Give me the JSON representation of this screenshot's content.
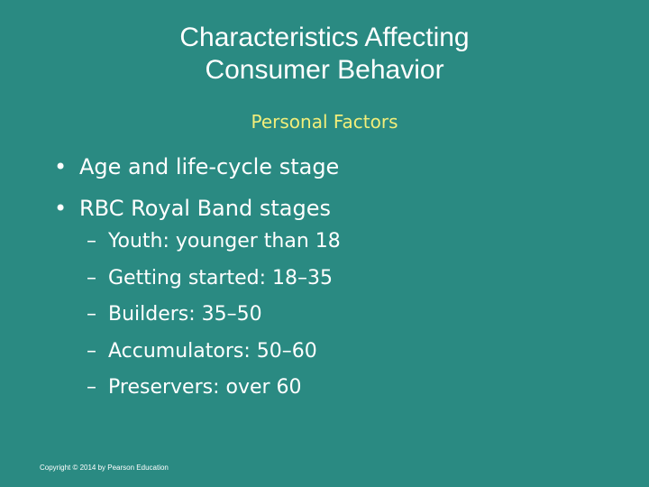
{
  "slide": {
    "title_line1": "Characteristics Affecting",
    "title_line2": "Consumer Behavior",
    "subtitle": "Personal Factors",
    "bullets": [
      "Age and life-cycle stage",
      "RBC Royal Band stages"
    ],
    "sub_bullets": [
      "Youth: younger than 18",
      "Getting started: 18–35",
      "Builders: 35–50",
      "Accumulators: 50–60",
      "Preservers: over 60"
    ],
    "bullet_glyph": "•",
    "dash_glyph": "–",
    "copyright": "Copyright © 2014 by Pearson Education"
  },
  "colors": {
    "background": "#2a8a82",
    "title": "#ffffff",
    "subtitle": "#f2ee7a",
    "body_text": "#ffffff"
  }
}
